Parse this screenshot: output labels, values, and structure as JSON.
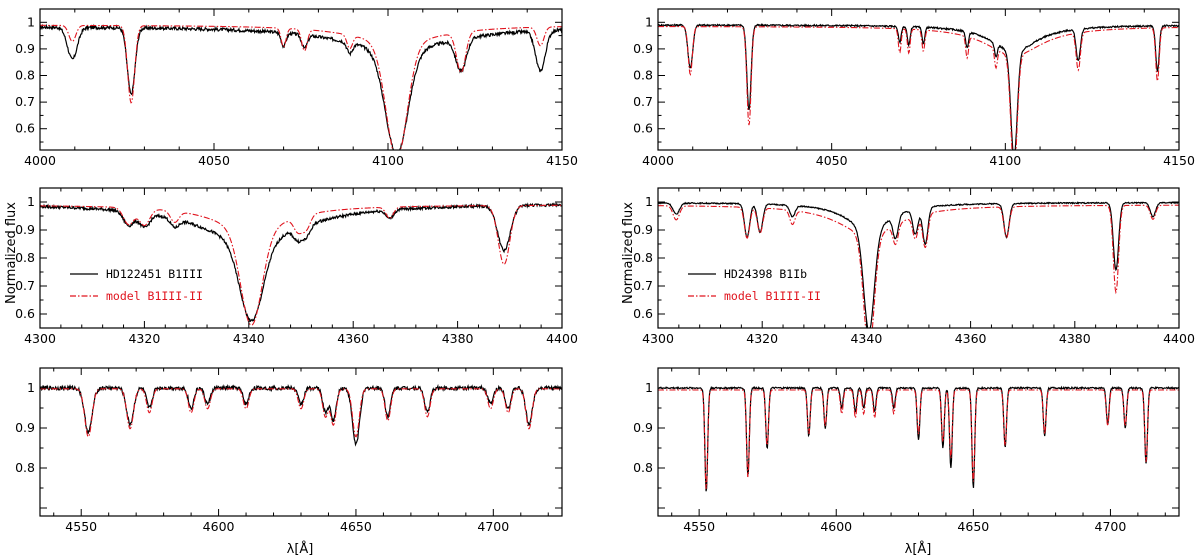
{
  "figure": {
    "ylabel": "Normalized flux",
    "xlabel": "λ[Å]"
  },
  "colors": {
    "observed": "#000000",
    "model": "#e0141e"
  },
  "chart_data": [
    {
      "type": "line",
      "panel": "left-1",
      "xlim": [
        4000,
        4150
      ],
      "ylim": [
        0.52,
        1.05
      ],
      "xticks": [
        4000,
        4050,
        4100,
        4150
      ],
      "yticks": [
        0.6,
        0.7,
        0.8,
        0.9,
        1
      ],
      "continuum_obs": 0.985,
      "continuum_mod": 0.99,
      "noise": 0.006,
      "lines_obs": [
        [
          4009.3,
          0.12,
          1.4
        ],
        [
          4026.2,
          0.25,
          1.1
        ],
        [
          4070,
          0.05,
          0.7
        ],
        [
          4076,
          0.05,
          0.8
        ],
        [
          4089,
          0.04,
          0.8
        ],
        [
          4102.5,
          0.39,
          3.2
        ],
        [
          4121,
          0.12,
          1.5
        ],
        [
          4143.8,
          0.15,
          1.4
        ]
      ],
      "lines_mod": [
        [
          4009.3,
          0.06,
          1.0
        ],
        [
          4026.2,
          0.29,
          1.0
        ],
        [
          4070,
          0.07,
          0.7
        ],
        [
          4076,
          0.08,
          0.8
        ],
        [
          4089,
          0.05,
          0.8
        ],
        [
          4102.5,
          0.43,
          3.0
        ],
        [
          4121,
          0.15,
          1.3
        ],
        [
          4143.8,
          0.07,
          1.0
        ]
      ],
      "broad_obs": [
        [
          4102.5,
          0.09,
          20
        ]
      ],
      "broad_mod": [
        [
          4102.5,
          0.07,
          15
        ]
      ],
      "series": [
        {
          "name": "HD122451 B1III",
          "style": "solid"
        },
        {
          "name": "model B1III-II",
          "style": "dash-dot"
        }
      ]
    },
    {
      "type": "line",
      "panel": "right-1",
      "xlim": [
        4000,
        4150
      ],
      "ylim": [
        0.52,
        1.05
      ],
      "xticks": [
        4000,
        4050,
        4100,
        4150
      ],
      "yticks": [
        0.6,
        0.7,
        0.8,
        0.9,
        1
      ],
      "continuum_obs": 0.99,
      "continuum_mod": 0.985,
      "noise": 0.003,
      "lines_obs": [
        [
          4009.3,
          0.16,
          0.7
        ],
        [
          4026.2,
          0.32,
          0.6
        ],
        [
          4069.6,
          0.06,
          0.4
        ],
        [
          4072.2,
          0.07,
          0.4
        ],
        [
          4076.4,
          0.06,
          0.4
        ],
        [
          4089,
          0.06,
          0.4
        ],
        [
          4097.3,
          0.05,
          0.4
        ],
        [
          4102.5,
          0.4,
          0.9
        ],
        [
          4121,
          0.12,
          0.6
        ],
        [
          4143.8,
          0.17,
          0.5
        ]
      ],
      "lines_mod": [
        [
          4009.3,
          0.18,
          0.6
        ],
        [
          4026.2,
          0.37,
          0.6
        ],
        [
          4069.6,
          0.09,
          0.4
        ],
        [
          4072.2,
          0.09,
          0.4
        ],
        [
          4076.4,
          0.08,
          0.4
        ],
        [
          4089,
          0.08,
          0.4
        ],
        [
          4097.3,
          0.07,
          0.4
        ],
        [
          4102.5,
          0.44,
          0.9
        ],
        [
          4121,
          0.14,
          0.6
        ],
        [
          4143.8,
          0.2,
          0.5
        ]
      ],
      "broad_obs": [
        [
          4102.5,
          0.1,
          8
        ]
      ],
      "broad_mod": [
        [
          4102.5,
          0.11,
          10
        ]
      ],
      "series": [
        {
          "name": "HD24398 B1Ib",
          "style": "solid"
        },
        {
          "name": "model B1III-II",
          "style": "dash-dot"
        }
      ]
    },
    {
      "type": "line",
      "panel": "left-2",
      "xlim": [
        4300,
        4400
      ],
      "ylim": [
        0.55,
        1.05
      ],
      "xticks": [
        4300,
        4320,
        4340,
        4360,
        4380,
        4400
      ],
      "yticks": [
        0.6,
        0.7,
        0.8,
        0.9,
        1
      ],
      "continuum_obs": 0.995,
      "continuum_mod": 0.99,
      "noise": 0.005,
      "lines_obs": [
        [
          4317,
          0.05,
          1.0
        ],
        [
          4320,
          0.05,
          1.0
        ],
        [
          4325.8,
          0.03,
          0.8
        ],
        [
          4340.5,
          0.28,
          2.2
        ],
        [
          4349.4,
          0.04,
          0.8
        ],
        [
          4351,
          0.04,
          0.8
        ],
        [
          4367,
          0.03,
          0.7
        ],
        [
          4388.9,
          0.16,
          1.2
        ]
      ],
      "lines_mod": [
        [
          4317,
          0.06,
          1.0
        ],
        [
          4320,
          0.06,
          1.0
        ],
        [
          4325.8,
          0.04,
          0.8
        ],
        [
          4340.5,
          0.33,
          2.0
        ],
        [
          4349.4,
          0.05,
          0.8
        ],
        [
          4351,
          0.05,
          0.8
        ],
        [
          4367,
          0.04,
          0.7
        ],
        [
          4388.9,
          0.21,
          1.1
        ]
      ],
      "broad_obs": [
        [
          4340.5,
          0.14,
          12
        ]
      ],
      "broad_mod": [
        [
          4340.5,
          0.1,
          8
        ]
      ],
      "series": [
        {
          "name": "HD122451 B1III",
          "style": "solid"
        },
        {
          "name": "model B1III-II",
          "style": "dash-dot"
        }
      ]
    },
    {
      "type": "line",
      "panel": "right-2",
      "xlim": [
        4300,
        4400
      ],
      "ylim": [
        0.55,
        1.05
      ],
      "xticks": [
        4300,
        4320,
        4340,
        4360,
        4380,
        4400
      ],
      "yticks": [
        0.6,
        0.7,
        0.8,
        0.9,
        1
      ],
      "continuum_obs": 0.998,
      "continuum_mod": 0.99,
      "noise": 0.002,
      "lines_obs": [
        [
          4303.5,
          0.04,
          0.6
        ],
        [
          4317.1,
          0.12,
          0.5
        ],
        [
          4319.6,
          0.1,
          0.5
        ],
        [
          4325.8,
          0.04,
          0.5
        ],
        [
          4340.5,
          0.36,
          1.0
        ],
        [
          4345.6,
          0.08,
          0.5
        ],
        [
          4349.4,
          0.09,
          0.5
        ],
        [
          4351.3,
          0.13,
          0.5
        ],
        [
          4366.9,
          0.12,
          0.5
        ],
        [
          4387.9,
          0.24,
          0.5
        ],
        [
          4395,
          0.05,
          0.5
        ]
      ],
      "lines_mod": [
        [
          4303.5,
          0.05,
          0.6
        ],
        [
          4317.1,
          0.11,
          0.5
        ],
        [
          4319.6,
          0.09,
          0.5
        ],
        [
          4325.8,
          0.05,
          0.5
        ],
        [
          4340.5,
          0.41,
          1.0
        ],
        [
          4345.6,
          0.07,
          0.5
        ],
        [
          4349.4,
          0.08,
          0.5
        ],
        [
          4351.3,
          0.12,
          0.5
        ],
        [
          4366.9,
          0.11,
          0.5
        ],
        [
          4387.9,
          0.31,
          0.5
        ],
        [
          4395,
          0.05,
          0.5
        ]
      ],
      "broad_obs": [
        [
          4340.5,
          0.1,
          5
        ]
      ],
      "broad_mod": [
        [
          4340.5,
          0.11,
          7
        ]
      ],
      "series": [
        {
          "name": "HD24398 B1Ib",
          "style": "solid"
        },
        {
          "name": "model B1III-II",
          "style": "dash-dot"
        }
      ]
    },
    {
      "type": "line",
      "panel": "left-3",
      "xlim": [
        4535,
        4725
      ],
      "ylim": [
        0.68,
        1.05
      ],
      "xticks": [
        4550,
        4600,
        4650,
        4700
      ],
      "yticks": [
        0.8,
        0.9,
        1
      ],
      "continuum_obs": 1.0,
      "continuum_mod": 0.998,
      "noise": 0.005,
      "lines_obs": [
        [
          4552.6,
          0.11,
          1.4
        ],
        [
          4567.8,
          0.09,
          1.3
        ],
        [
          4574.8,
          0.05,
          1.0
        ],
        [
          4590,
          0.05,
          1.0
        ],
        [
          4596,
          0.04,
          1.0
        ],
        [
          4610,
          0.04,
          1.0
        ],
        [
          4630,
          0.04,
          1.0
        ],
        [
          4638.9,
          0.06,
          1.0
        ],
        [
          4641.8,
          0.08,
          1.0
        ],
        [
          4650,
          0.14,
          1.3
        ],
        [
          4661.6,
          0.07,
          1.0
        ],
        [
          4676,
          0.06,
          1.0
        ],
        [
          4699,
          0.04,
          1.0
        ],
        [
          4705.4,
          0.05,
          1.0
        ],
        [
          4713,
          0.09,
          1.2
        ]
      ],
      "lines_mod": [
        [
          4552.6,
          0.12,
          1.3
        ],
        [
          4567.8,
          0.1,
          1.2
        ],
        [
          4574.8,
          0.06,
          1.0
        ],
        [
          4590,
          0.06,
          1.0
        ],
        [
          4596,
          0.05,
          1.0
        ],
        [
          4610,
          0.05,
          1.0
        ],
        [
          4630,
          0.05,
          1.0
        ],
        [
          4638.9,
          0.07,
          1.0
        ],
        [
          4641.8,
          0.09,
          1.0
        ],
        [
          4650,
          0.12,
          1.2
        ],
        [
          4661.6,
          0.08,
          1.0
        ],
        [
          4676,
          0.07,
          1.0
        ],
        [
          4699,
          0.05,
          1.0
        ],
        [
          4705.4,
          0.06,
          1.0
        ],
        [
          4713,
          0.1,
          1.1
        ]
      ],
      "broad_obs": [],
      "broad_mod": [],
      "series": [
        {
          "name": "HD122451 B1III",
          "style": "solid"
        },
        {
          "name": "model B1III-II",
          "style": "dash-dot"
        }
      ]
    },
    {
      "type": "line",
      "panel": "right-3",
      "xlim": [
        4535,
        4725
      ],
      "ylim": [
        0.68,
        1.05
      ],
      "xticks": [
        4550,
        4600,
        4650,
        4700
      ],
      "yticks": [
        0.8,
        0.9,
        1
      ],
      "continuum_obs": 1.0,
      "continuum_mod": 0.995,
      "noise": 0.002,
      "lines_obs": [
        [
          4552.6,
          0.26,
          0.5
        ],
        [
          4567.8,
          0.22,
          0.5
        ],
        [
          4574.8,
          0.15,
          0.5
        ],
        [
          4590,
          0.12,
          0.5
        ],
        [
          4596,
          0.1,
          0.5
        ],
        [
          4602,
          0.05,
          0.5
        ],
        [
          4607,
          0.06,
          0.5
        ],
        [
          4610,
          0.05,
          0.5
        ],
        [
          4614,
          0.06,
          0.5
        ],
        [
          4621,
          0.05,
          0.5
        ],
        [
          4630,
          0.13,
          0.5
        ],
        [
          4638.9,
          0.15,
          0.5
        ],
        [
          4641.8,
          0.2,
          0.5
        ],
        [
          4650,
          0.25,
          0.5
        ],
        [
          4661.6,
          0.15,
          0.5
        ],
        [
          4676,
          0.12,
          0.5
        ],
        [
          4699,
          0.09,
          0.5
        ],
        [
          4705.4,
          0.1,
          0.5
        ],
        [
          4713,
          0.19,
          0.5
        ]
      ],
      "lines_mod": [
        [
          4552.6,
          0.25,
          0.5
        ],
        [
          4567.8,
          0.22,
          0.5
        ],
        [
          4574.8,
          0.14,
          0.5
        ],
        [
          4590,
          0.11,
          0.5
        ],
        [
          4596,
          0.09,
          0.5
        ],
        [
          4602,
          0.06,
          0.5
        ],
        [
          4607,
          0.07,
          0.5
        ],
        [
          4610,
          0.06,
          0.5
        ],
        [
          4614,
          0.07,
          0.5
        ],
        [
          4621,
          0.06,
          0.5
        ],
        [
          4630,
          0.11,
          0.5
        ],
        [
          4638.9,
          0.13,
          0.5
        ],
        [
          4641.8,
          0.17,
          0.5
        ],
        [
          4650,
          0.23,
          0.5
        ],
        [
          4661.6,
          0.14,
          0.5
        ],
        [
          4676,
          0.11,
          0.5
        ],
        [
          4699,
          0.09,
          0.5
        ],
        [
          4705.4,
          0.09,
          0.5
        ],
        [
          4713,
          0.18,
          0.5
        ]
      ],
      "broad_obs": [],
      "broad_mod": [],
      "series": [
        {
          "name": "HD24398 B1Ib",
          "style": "solid"
        },
        {
          "name": "model B1III-II",
          "style": "dash-dot"
        }
      ]
    }
  ]
}
